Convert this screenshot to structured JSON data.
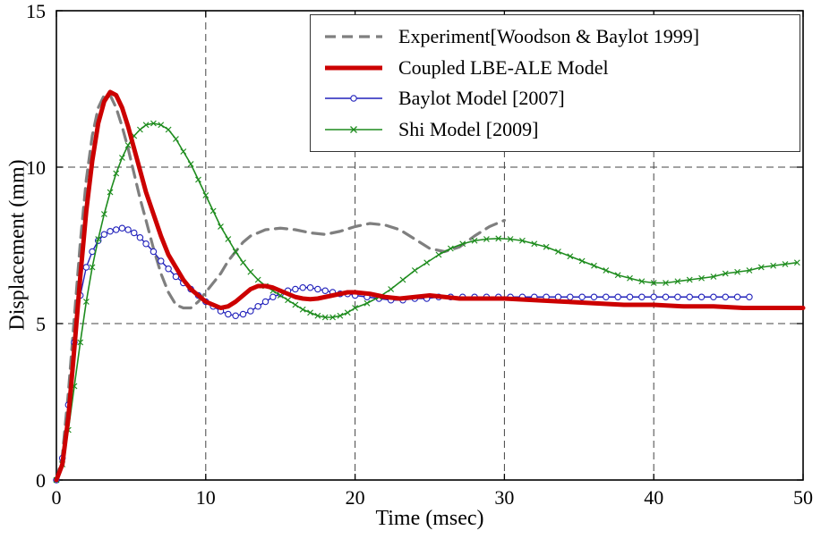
{
  "chart_data": {
    "type": "line",
    "title": "",
    "xlabel": "Time (msec)",
    "ylabel": "Displacement (mm)",
    "xlim": [
      0,
      50
    ],
    "ylim": [
      0,
      15
    ],
    "xticks": [
      0,
      10,
      20,
      30,
      40,
      50
    ],
    "yticks": [
      0,
      5,
      10,
      15
    ],
    "xgrid": [
      10,
      20,
      30,
      40
    ],
    "ygrid": [
      5,
      10
    ],
    "grid_style": "dashed",
    "legend_position": "top-right",
    "background": "#ffffff",
    "axis_color": "#000000",
    "grid_color": "#444444",
    "draw_order": [
      0,
      2,
      3,
      1
    ],
    "series": [
      {
        "name": "Experiment[Woodson & Baylot 1999]",
        "color": "#7f7f7f",
        "style": "dashed",
        "width": 3.2,
        "marker": "none",
        "x": [
          0,
          0.4,
          0.8,
          1.2,
          1.6,
          2,
          2.4,
          2.8,
          3.2,
          3.6,
          4,
          4.4,
          4.8,
          5.2,
          5.6,
          6,
          6.5,
          7,
          7.5,
          8,
          8.5,
          9,
          9.5,
          10,
          10.5,
          11,
          11.5,
          12,
          12.5,
          13,
          14,
          15,
          16,
          17,
          18,
          19,
          20,
          21,
          22,
          23,
          24,
          25,
          26,
          27,
          28,
          29,
          30
        ],
        "y": [
          0,
          0.8,
          2.8,
          5.2,
          7.6,
          9.6,
          11.0,
          11.9,
          12.3,
          12.3,
          11.9,
          11.3,
          10.6,
          9.8,
          9.0,
          8.3,
          7.4,
          6.6,
          6.0,
          5.6,
          5.5,
          5.5,
          5.7,
          6.0,
          6.3,
          6.6,
          7.0,
          7.3,
          7.6,
          7.8,
          8.0,
          8.05,
          8.0,
          7.9,
          7.85,
          7.95,
          8.1,
          8.2,
          8.15,
          8.0,
          7.7,
          7.4,
          7.3,
          7.45,
          7.8,
          8.1,
          8.3
        ]
      },
      {
        "name": "Coupled LBE-ALE Model",
        "color": "#cc0000",
        "style": "solid",
        "width": 5,
        "marker": "none",
        "x": [
          0,
          0.4,
          0.8,
          1.2,
          1.6,
          2,
          2.4,
          2.8,
          3.2,
          3.6,
          4,
          4.4,
          4.8,
          5.2,
          5.6,
          6,
          6.5,
          7,
          7.5,
          8,
          8.5,
          9,
          9.5,
          10,
          10.5,
          11,
          11.5,
          12,
          12.5,
          13,
          13.5,
          14,
          14.5,
          15,
          15.5,
          16,
          16.5,
          17,
          17.5,
          18,
          18.5,
          19,
          19.5,
          20,
          21,
          22,
          23,
          24,
          25,
          26,
          27,
          28,
          29,
          30,
          32,
          34,
          36,
          38,
          40,
          42,
          44,
          46,
          48,
          50
        ],
        "y": [
          0,
          0.5,
          2.0,
          4.2,
          6.5,
          8.6,
          10.2,
          11.4,
          12.1,
          12.4,
          12.3,
          11.9,
          11.3,
          10.6,
          9.9,
          9.2,
          8.5,
          7.8,
          7.2,
          6.8,
          6.4,
          6.1,
          5.9,
          5.7,
          5.6,
          5.5,
          5.55,
          5.7,
          5.9,
          6.1,
          6.2,
          6.2,
          6.15,
          6.05,
          5.95,
          5.85,
          5.8,
          5.78,
          5.8,
          5.85,
          5.9,
          5.95,
          6.0,
          6.0,
          5.95,
          5.85,
          5.8,
          5.85,
          5.9,
          5.85,
          5.8,
          5.8,
          5.8,
          5.8,
          5.75,
          5.7,
          5.65,
          5.6,
          5.6,
          5.55,
          5.55,
          5.5,
          5.5,
          5.5
        ]
      },
      {
        "name": "Baylot Model [2007]",
        "color": "#2222bb",
        "style": "solid",
        "width": 1.4,
        "marker": "circle",
        "x": [
          0,
          0.4,
          0.8,
          1.2,
          1.6,
          2,
          2.4,
          2.8,
          3.2,
          3.6,
          4,
          4.4,
          4.8,
          5.2,
          5.6,
          6,
          6.5,
          7,
          7.5,
          8,
          8.5,
          9,
          9.5,
          10,
          10.5,
          11,
          11.5,
          12,
          12.5,
          13,
          13.5,
          14,
          14.5,
          15,
          15.5,
          16,
          16.5,
          17,
          17.5,
          18,
          18.5,
          19,
          19.5,
          20,
          20.8,
          21.6,
          22.4,
          23.2,
          24,
          24.8,
          25.6,
          26.4,
          27.2,
          28,
          28.8,
          29.6,
          30.4,
          31.2,
          32,
          32.8,
          33.6,
          34.4,
          35.2,
          36,
          36.8,
          37.6,
          38.4,
          39.2,
          40,
          40.8,
          41.6,
          42.4,
          43.2,
          44,
          44.8,
          45.6,
          46.4
        ],
        "y": [
          0,
          0.7,
          2.4,
          4.4,
          5.9,
          6.8,
          7.3,
          7.65,
          7.85,
          7.95,
          8.0,
          8.05,
          8.0,
          7.9,
          7.75,
          7.55,
          7.3,
          7.0,
          6.75,
          6.5,
          6.3,
          6.1,
          5.9,
          5.7,
          5.55,
          5.4,
          5.3,
          5.25,
          5.3,
          5.4,
          5.55,
          5.7,
          5.85,
          5.95,
          6.05,
          6.1,
          6.15,
          6.15,
          6.1,
          6.05,
          6.0,
          5.95,
          5.95,
          5.9,
          5.85,
          5.8,
          5.75,
          5.75,
          5.8,
          5.8,
          5.85,
          5.85,
          5.85,
          5.85,
          5.85,
          5.85,
          5.85,
          5.85,
          5.85,
          5.85,
          5.85,
          5.85,
          5.85,
          5.85,
          5.85,
          5.85,
          5.85,
          5.85,
          5.85,
          5.85,
          5.85,
          5.85,
          5.85,
          5.85,
          5.85,
          5.85,
          5.85
        ]
      },
      {
        "name": "Shi Model [2009]",
        "color": "#1e8c1e",
        "style": "solid",
        "width": 1.6,
        "marker": "x",
        "x": [
          0,
          0.4,
          0.8,
          1.2,
          1.6,
          2,
          2.4,
          2.8,
          3.2,
          3.6,
          4,
          4.4,
          4.8,
          5.2,
          5.6,
          6,
          6.5,
          7,
          7.5,
          8,
          8.5,
          9,
          9.5,
          10,
          10.5,
          11,
          11.5,
          12,
          12.5,
          13,
          13.5,
          14,
          14.5,
          15,
          15.5,
          16,
          16.5,
          17,
          17.5,
          18,
          18.5,
          19,
          19.5,
          20,
          20.8,
          21.6,
          22.4,
          23.2,
          24,
          24.8,
          25.6,
          26.4,
          27.2,
          28,
          28.8,
          29.6,
          30.4,
          31.2,
          32,
          32.8,
          33.6,
          34.4,
          35.2,
          36,
          36.8,
          37.6,
          38.4,
          39.2,
          40,
          40.8,
          41.6,
          42.4,
          43.2,
          44,
          44.8,
          45.6,
          46.4,
          47.2,
          48,
          48.8,
          49.6
        ],
        "y": [
          0,
          0.5,
          1.6,
          3.0,
          4.4,
          5.7,
          6.8,
          7.7,
          8.5,
          9.2,
          9.8,
          10.3,
          10.7,
          11.0,
          11.2,
          11.35,
          11.4,
          11.35,
          11.2,
          10.9,
          10.5,
          10.1,
          9.6,
          9.1,
          8.6,
          8.1,
          7.7,
          7.3,
          6.95,
          6.65,
          6.4,
          6.2,
          6.05,
          5.9,
          5.75,
          5.6,
          5.45,
          5.35,
          5.25,
          5.2,
          5.2,
          5.25,
          5.35,
          5.5,
          5.65,
          5.85,
          6.1,
          6.4,
          6.7,
          6.95,
          7.2,
          7.4,
          7.55,
          7.65,
          7.7,
          7.72,
          7.7,
          7.65,
          7.55,
          7.45,
          7.3,
          7.15,
          7.0,
          6.85,
          6.7,
          6.55,
          6.45,
          6.35,
          6.3,
          6.3,
          6.35,
          6.4,
          6.45,
          6.5,
          6.6,
          6.65,
          6.7,
          6.8,
          6.85,
          6.9,
          6.95
        ]
      }
    ]
  }
}
